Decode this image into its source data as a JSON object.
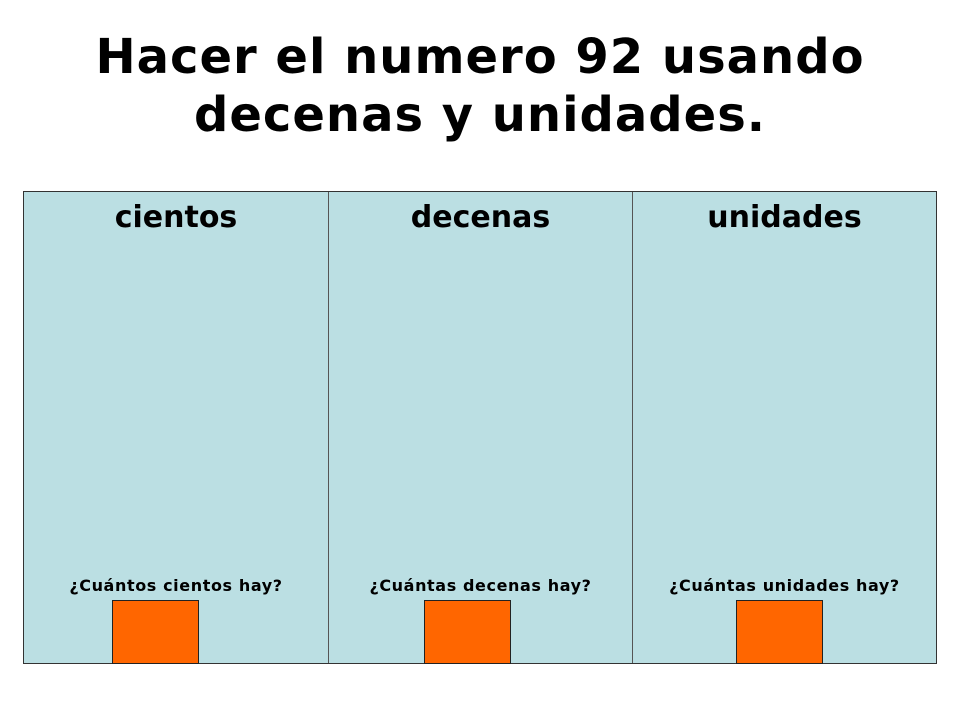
{
  "title": {
    "line1": "Hacer el numero 92 usando",
    "line2": "decenas y unidades."
  },
  "columns": [
    {
      "header": "cientos",
      "question": "¿Cuántos cientos hay?"
    },
    {
      "header": "decenas",
      "question": "¿Cuántas decenas hay?"
    },
    {
      "header": "unidades",
      "question": "¿Cuántas unidades hay?"
    }
  ],
  "colors": {
    "panel_background": "#bbdfe3",
    "answer_box": "#ff6600",
    "text": "#000000"
  }
}
